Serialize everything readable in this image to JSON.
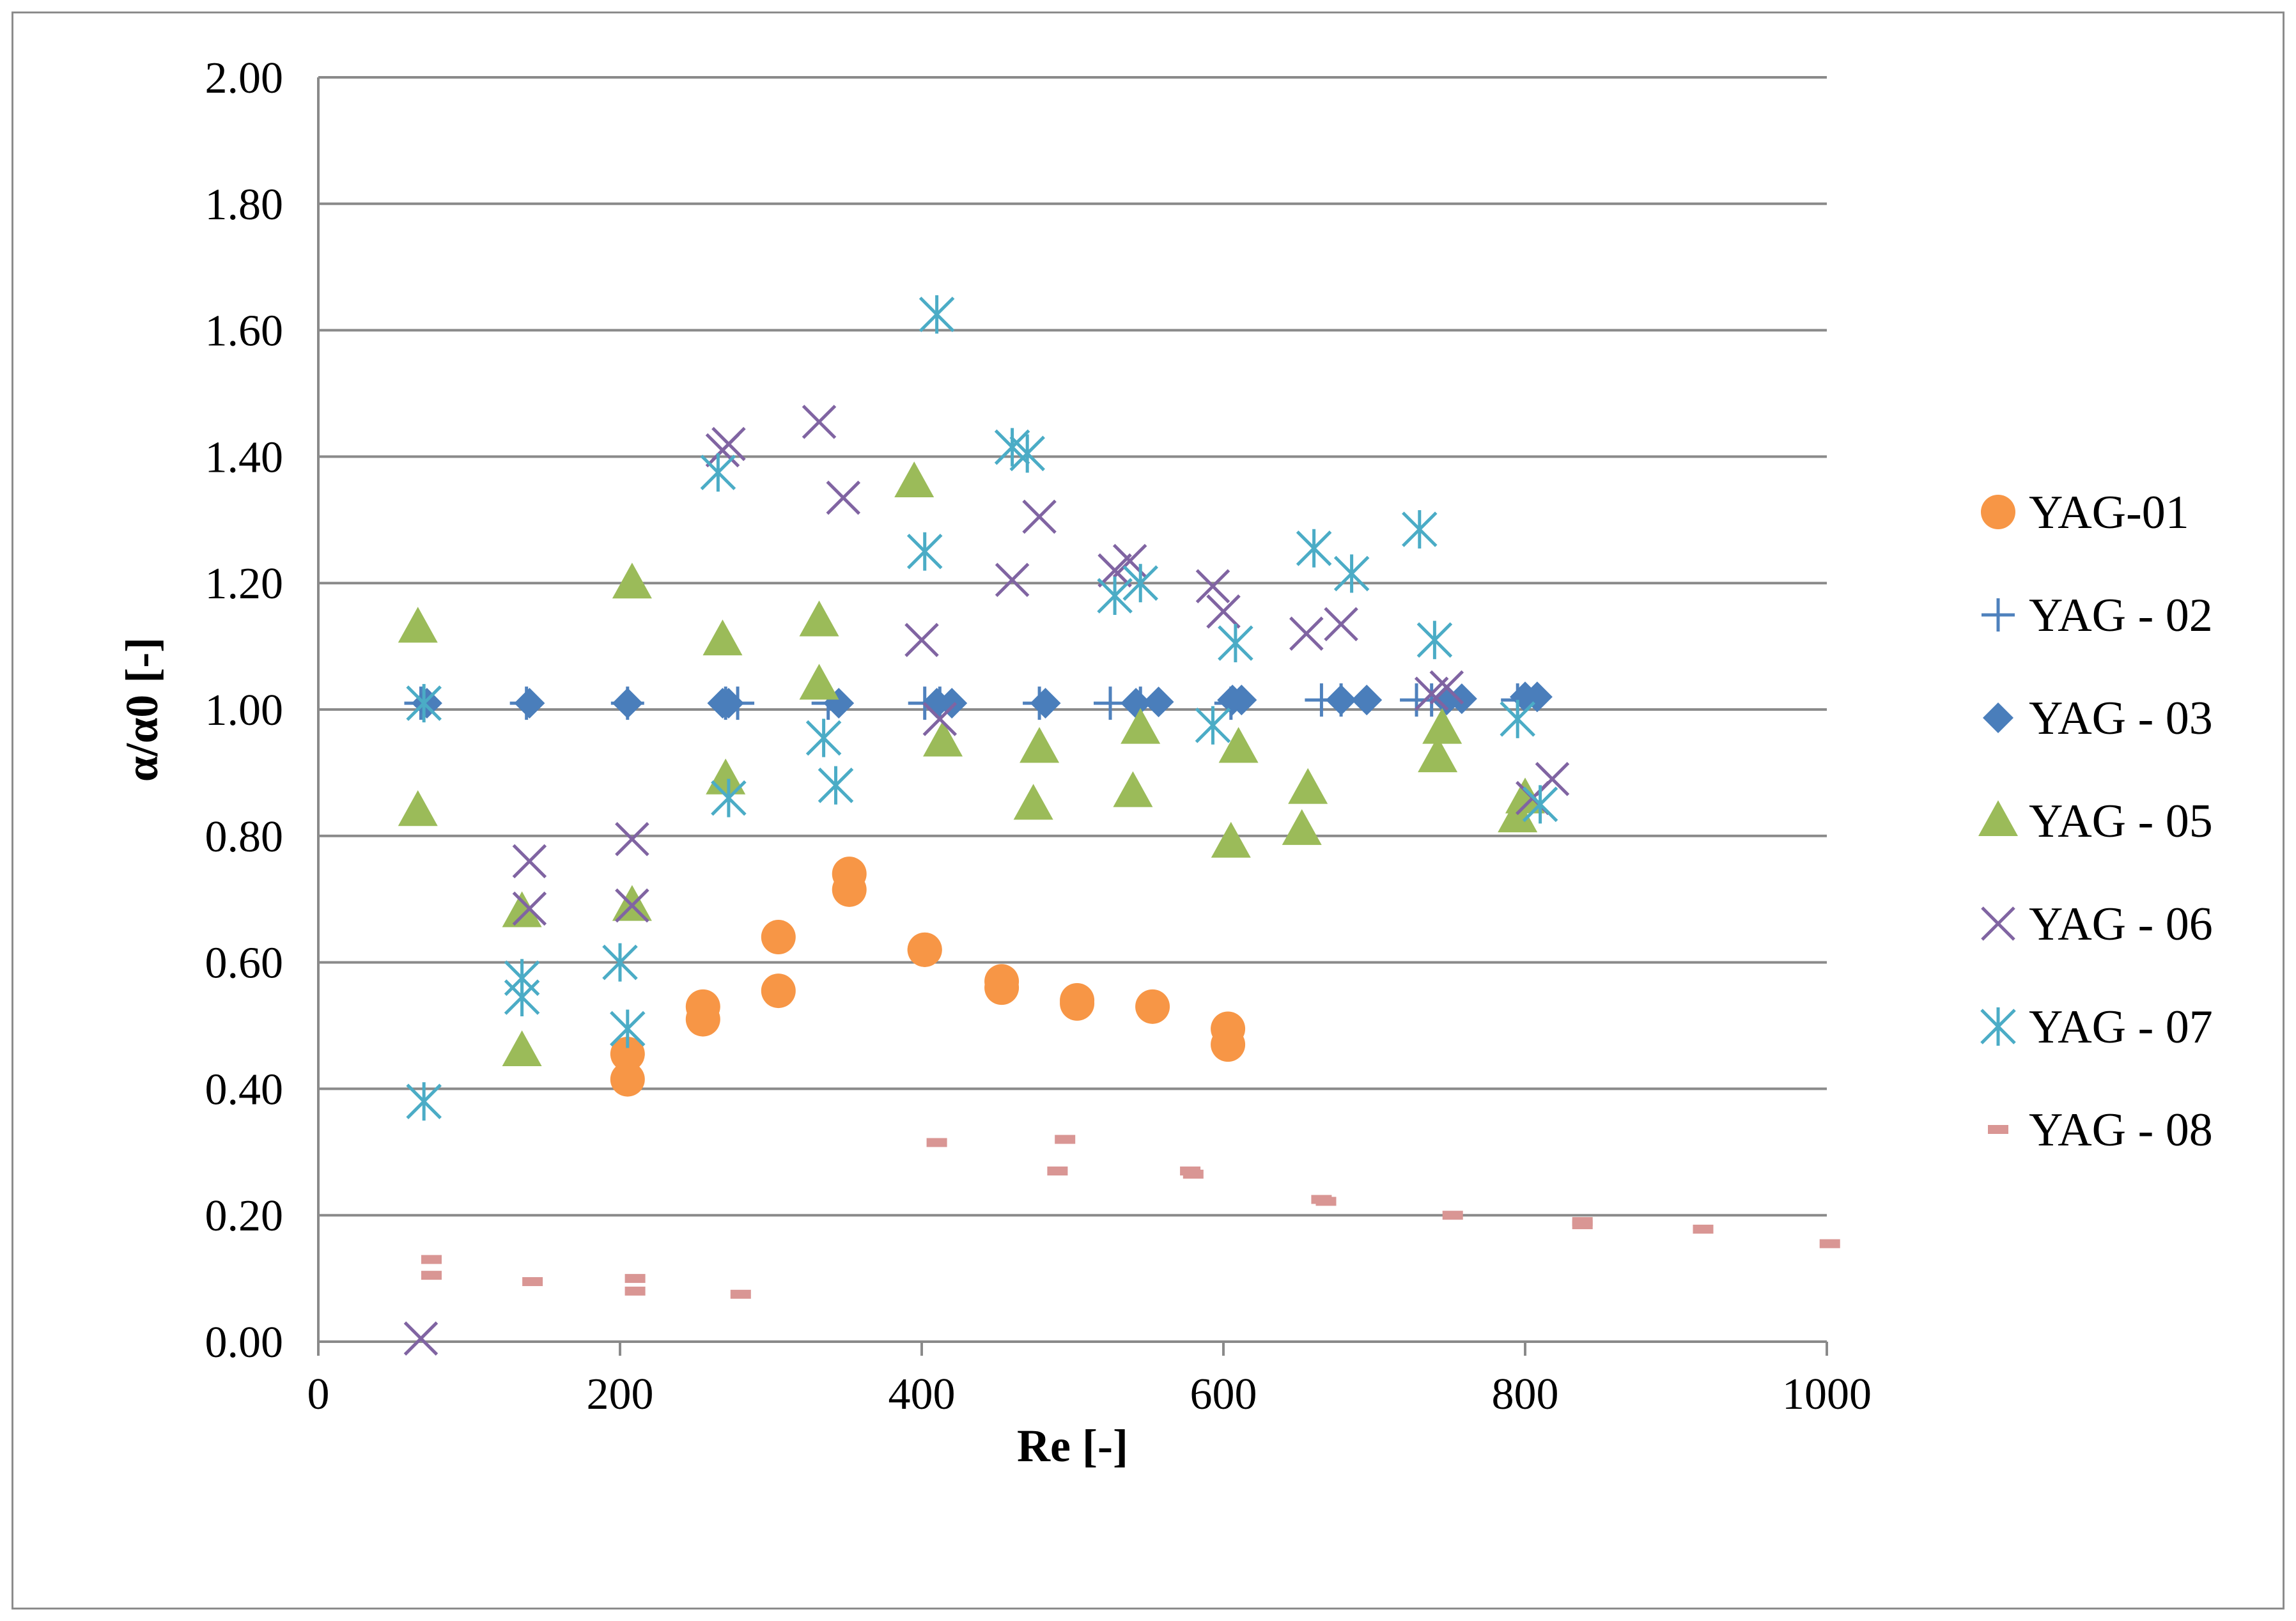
{
  "chart_data": {
    "type": "scatter",
    "title": "",
    "xlabel": "Re [-]",
    "ylabel": "α/α0 [-]",
    "xlim": [
      0,
      1000
    ],
    "ylim": [
      0,
      2
    ],
    "x_ticks": [
      0,
      200,
      400,
      600,
      800,
      1000
    ],
    "x_tick_labels": [
      "0",
      "200",
      "400",
      "600",
      "800",
      "1000"
    ],
    "y_ticks": [
      0,
      0.2,
      0.4,
      0.6,
      0.8,
      1.0,
      1.2,
      1.4,
      1.6,
      1.8,
      2.0
    ],
    "y_tick_labels": [
      "0.00",
      "0.20",
      "0.40",
      "0.60",
      "0.80",
      "1.00",
      "1.20",
      "1.40",
      "1.60",
      "1.80",
      "2.00"
    ],
    "grid": "horizontal",
    "legend_position": "right",
    "series": [
      {
        "name": "YAG-01",
        "marker": "circle",
        "color": "#f79646",
        "points": [
          [
            205,
            0.455
          ],
          [
            205,
            0.415
          ],
          [
            255,
            0.53
          ],
          [
            255,
            0.51
          ],
          [
            305,
            0.64
          ],
          [
            305,
            0.555
          ],
          [
            352,
            0.74
          ],
          [
            352,
            0.715
          ],
          [
            402,
            0.62
          ],
          [
            402,
            0.62
          ],
          [
            453,
            0.57
          ],
          [
            453,
            0.56
          ],
          [
            503,
            0.54
          ],
          [
            503,
            0.535
          ],
          [
            553,
            0.53
          ],
          [
            603,
            0.495
          ],
          [
            603,
            0.47
          ]
        ]
      },
      {
        "name": "YAG - 02",
        "marker": "plus",
        "color": "#4f81bd",
        "points": [
          [
            68,
            1.01
          ],
          [
            138,
            1.01
          ],
          [
            205,
            1.01
          ],
          [
            270,
            1.01
          ],
          [
            278,
            1.01
          ],
          [
            338,
            1.01
          ],
          [
            402,
            1.01
          ],
          [
            412,
            1.01
          ],
          [
            478,
            1.01
          ],
          [
            525,
            1.01
          ],
          [
            545,
            1.01
          ],
          [
            605,
            1.01
          ],
          [
            665,
            1.015
          ],
          [
            678,
            1.015
          ],
          [
            728,
            1.015
          ],
          [
            738,
            1.015
          ],
          [
            795,
            1.015
          ]
        ]
      },
      {
        "name": "YAG - 03",
        "marker": "diamond",
        "color": "#4a7ebb",
        "points": [
          [
            72,
            1.01
          ],
          [
            140,
            1.01
          ],
          [
            205,
            1.01
          ],
          [
            268,
            1.01
          ],
          [
            272,
            1.01
          ],
          [
            345,
            1.01
          ],
          [
            410,
            1.01
          ],
          [
            420,
            1.01
          ],
          [
            482,
            1.01
          ],
          [
            542,
            1.01
          ],
          [
            557,
            1.012
          ],
          [
            606,
            1.015
          ],
          [
            612,
            1.015
          ],
          [
            678,
            1.015
          ],
          [
            695,
            1.015
          ],
          [
            748,
            1.015
          ],
          [
            758,
            1.017
          ],
          [
            800,
            1.02
          ],
          [
            808,
            1.02
          ]
        ]
      },
      {
        "name": "YAG - 05",
        "marker": "triangle",
        "color": "#9bbb59",
        "points": [
          [
            66,
            1.13
          ],
          [
            66,
            0.84
          ],
          [
            135,
            0.68
          ],
          [
            135,
            0.46
          ],
          [
            208,
            1.2
          ],
          [
            208,
            0.69
          ],
          [
            268,
            1.11
          ],
          [
            270,
            0.89
          ],
          [
            332,
            1.14
          ],
          [
            332,
            1.04
          ],
          [
            395,
            1.36
          ],
          [
            414,
            0.95
          ],
          [
            474,
            0.85
          ],
          [
            478,
            0.94
          ],
          [
            540,
            0.87
          ],
          [
            545,
            0.97
          ],
          [
            605,
            0.79
          ],
          [
            610,
            0.94
          ],
          [
            652,
            0.81
          ],
          [
            656,
            0.875
          ],
          [
            742,
            0.925
          ],
          [
            745,
            0.97
          ],
          [
            795,
            0.83
          ],
          [
            800,
            0.86
          ]
        ]
      },
      {
        "name": "YAG - 06",
        "marker": "x",
        "color": "#8064a2",
        "points": [
          [
            68,
            0.005
          ],
          [
            140,
            0.76
          ],
          [
            140,
            0.685
          ],
          [
            208,
            0.795
          ],
          [
            208,
            0.69
          ],
          [
            268,
            1.41
          ],
          [
            272,
            1.42
          ],
          [
            332,
            1.455
          ],
          [
            348,
            1.335
          ],
          [
            400,
            1.11
          ],
          [
            412,
            0.985
          ],
          [
            460,
            1.205
          ],
          [
            478,
            1.305
          ],
          [
            528,
            1.22
          ],
          [
            538,
            1.235
          ],
          [
            593,
            1.195
          ],
          [
            600,
            1.155
          ],
          [
            655,
            1.12
          ],
          [
            678,
            1.135
          ],
          [
            738,
            1.025
          ],
          [
            748,
            1.035
          ],
          [
            805,
            0.86
          ],
          [
            818,
            0.89
          ]
        ]
      },
      {
        "name": "YAG - 07",
        "marker": "asterisk",
        "color": "#4bacc6",
        "points": [
          [
            70,
            1.01
          ],
          [
            70,
            0.38
          ],
          [
            135,
            0.575
          ],
          [
            135,
            0.545
          ],
          [
            200,
            0.6
          ],
          [
            205,
            0.495
          ],
          [
            265,
            1.375
          ],
          [
            272,
            0.86
          ],
          [
            335,
            0.955
          ],
          [
            343,
            0.88
          ],
          [
            402,
            1.25
          ],
          [
            410,
            1.625
          ],
          [
            460,
            1.415
          ],
          [
            470,
            1.405
          ],
          [
            528,
            1.18
          ],
          [
            545,
            1.2
          ],
          [
            593,
            0.975
          ],
          [
            608,
            1.105
          ],
          [
            660,
            1.255
          ],
          [
            685,
            1.215
          ],
          [
            730,
            1.285
          ],
          [
            740,
            1.11
          ],
          [
            795,
            0.985
          ],
          [
            810,
            0.85
          ]
        ]
      },
      {
        "name": "YAG - 08",
        "marker": "dash",
        "color": "#d99694",
        "points": [
          [
            75,
            0.13
          ],
          [
            75,
            0.105
          ],
          [
            142,
            0.095
          ],
          [
            210,
            0.1
          ],
          [
            210,
            0.08
          ],
          [
            280,
            0.075
          ],
          [
            410,
            0.315
          ],
          [
            490,
            0.27
          ],
          [
            495,
            0.32
          ],
          [
            578,
            0.27
          ],
          [
            580,
            0.265
          ],
          [
            665,
            0.225
          ],
          [
            668,
            0.222
          ],
          [
            752,
            0.2
          ],
          [
            838,
            0.19
          ],
          [
            838,
            0.185
          ],
          [
            918,
            0.178
          ],
          [
            1002,
            0.155
          ]
        ]
      }
    ]
  }
}
